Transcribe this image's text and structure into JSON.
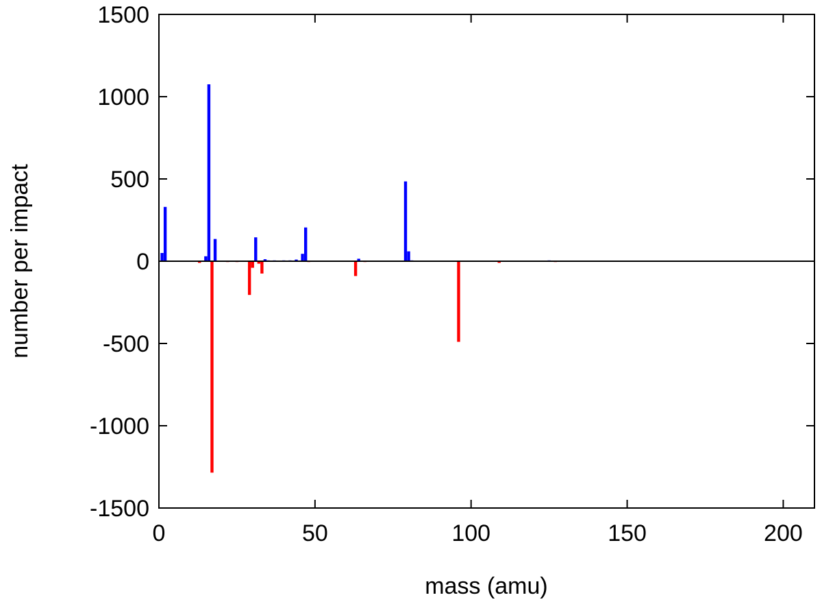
{
  "chart_data": {
    "type": "bar",
    "title": "",
    "xlabel": "mass (amu)",
    "ylabel": "number per impact",
    "xlim": [
      0,
      210
    ],
    "ylim": [
      -1500,
      1500
    ],
    "xticks": [
      0,
      50,
      100,
      150,
      200
    ],
    "yticks": [
      -1500,
      -1000,
      -500,
      0,
      500,
      1000,
      1500
    ],
    "grid": false,
    "series": [
      {
        "color": "#0000ff",
        "x": [
          1,
          2,
          15,
          16,
          18,
          31,
          34,
          35,
          37,
          40,
          42,
          44,
          46,
          47,
          64,
          79,
          80,
          81,
          125,
          157
        ],
        "values": [
          50,
          330,
          30,
          1075,
          135,
          145,
          12,
          5,
          5,
          5,
          5,
          10,
          45,
          205,
          15,
          485,
          60,
          5,
          5,
          3
        ]
      },
      {
        "color": "#ff0000",
        "x": [
          13,
          17,
          22,
          25,
          29,
          30,
          32,
          33,
          48,
          63,
          66,
          96,
          109,
          127
        ],
        "values": [
          -10,
          -1285,
          -5,
          -5,
          -205,
          -40,
          -15,
          -75,
          -5,
          -90,
          -5,
          -490,
          -10,
          -5
        ]
      }
    ]
  }
}
